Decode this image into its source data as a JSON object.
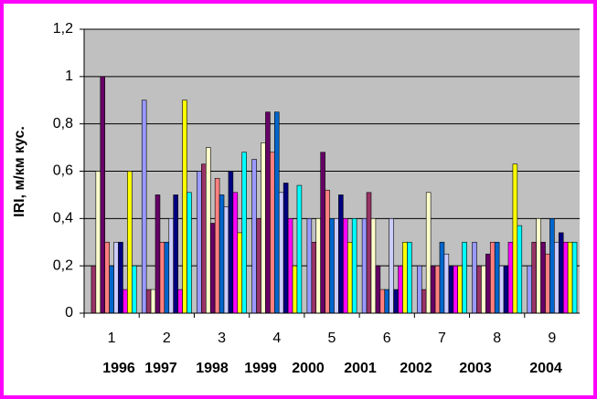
{
  "chart_data": {
    "type": "bar",
    "y_label": "IRI, м/км кус.",
    "categories": [
      "1",
      "2",
      "3",
      "4",
      "5",
      "6",
      "7",
      "8",
      "9"
    ],
    "years": [
      "1996",
      "1997",
      "1998",
      "1999",
      "2000",
      "2001",
      "2002",
      "2003",
      "2004"
    ],
    "ylim": [
      0,
      1.2
    ],
    "yticks": [
      0,
      {
        "value": 0.2,
        "label": "0,2"
      },
      {
        "value": 0.4,
        "label": "0,4"
      },
      {
        "value": 0.6,
        "label": "0,6"
      },
      {
        "value": 0.8,
        "label": "0,8"
      },
      1,
      {
        "value": 1.2,
        "label": "1,2"
      }
    ],
    "grid": true,
    "background": "#c0c0c0",
    "series": [
      {
        "color": "#9999ff",
        "values": [
          0,
          0.9,
          0.6,
          0.65,
          0.4,
          0.4,
          0.2,
          0.3,
          0.2
        ]
      },
      {
        "color": "#993366",
        "values": [
          0.2,
          0.1,
          0.63,
          0.4,
          0.3,
          0.51,
          0.1,
          0.2,
          0.3
        ]
      },
      {
        "color": "#ffffcc",
        "values": [
          0.6,
          0.1,
          0.7,
          0.72,
          0.4,
          0.4,
          0.51,
          0.2,
          0.4
        ]
      },
      {
        "color": "#660066",
        "values": [
          1.0,
          0.5,
          0.38,
          0.85,
          0.68,
          0.2,
          0.2,
          0.25,
          0.3
        ]
      },
      {
        "color": "#ff8080",
        "values": [
          0.3,
          0.3,
          0.57,
          0.68,
          0.52,
          0.1,
          0.2,
          0.3,
          0.25
        ]
      },
      {
        "color": "#0066cc",
        "values": [
          0.2,
          0.3,
          0.5,
          0.85,
          0.4,
          0.1,
          0.3,
          0.3,
          0.4
        ]
      },
      {
        "color": "#ccccff",
        "values": [
          0.3,
          0.4,
          0.45,
          0.51,
          0.4,
          0.4,
          0.25,
          0.2,
          0.3
        ]
      },
      {
        "color": "#000080",
        "values": [
          0.3,
          0.5,
          0.6,
          0.55,
          0.5,
          0.1,
          0.2,
          0.2,
          0.34
        ]
      },
      {
        "color": "#ff00ff",
        "values": [
          0.1,
          0.1,
          0.51,
          0.4,
          0.4,
          0.2,
          0.2,
          0.3,
          0.3
        ]
      },
      {
        "color": "#ffff00",
        "values": [
          0.6,
          0.9,
          0.34,
          0.2,
          0.3,
          0.3,
          0.2,
          0.63,
          0.3
        ]
      },
      {
        "color": "#00ffff",
        "values": [
          0.2,
          0.51,
          0.68,
          0.54,
          0.4,
          0.3,
          0.3,
          0.37,
          0.3
        ]
      }
    ]
  }
}
